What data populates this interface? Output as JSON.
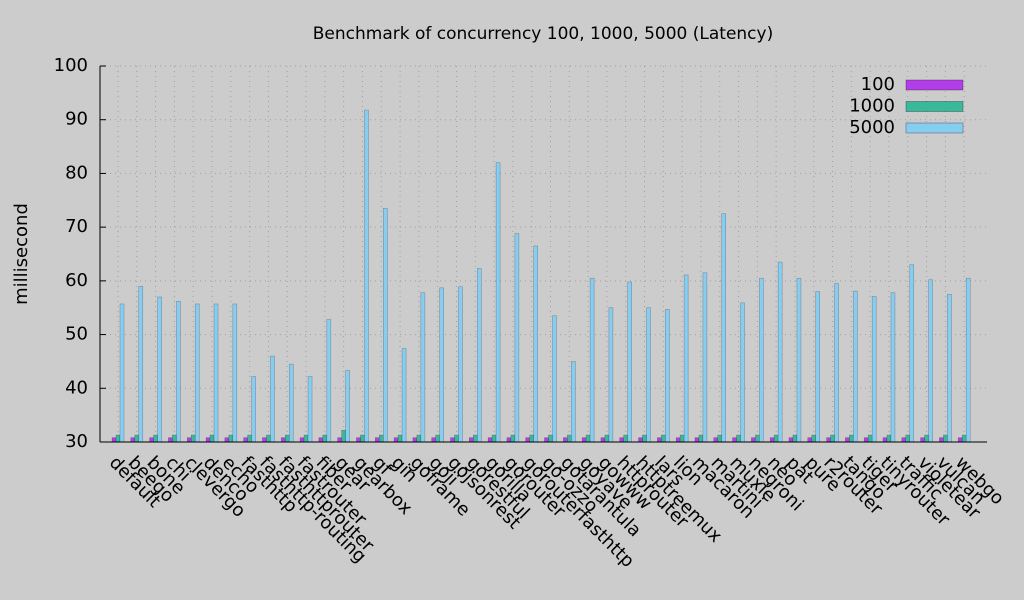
{
  "chart_data": {
    "type": "bar",
    "title": "Benchmark of concurrency 100, 1000, 5000 (Latency)",
    "y_label": "millisecond",
    "categories": [
      "default",
      "beego",
      "bone",
      "chi",
      "clevergo",
      "denco",
      "echo",
      "fasthttp",
      "fasthttp-routing",
      "fasthttprouter",
      "fastrouter",
      "fiber",
      "gear",
      "gearbox",
      "gf",
      "gin",
      "goframe",
      "goji",
      "gojsonrest",
      "gorestful",
      "gorilla",
      "gorouter",
      "gorouterfasthttp",
      "go-ozzo",
      "gotarantula",
      "goyave",
      "gowww",
      "httprouter",
      "httptreemux",
      "lars",
      "lion",
      "macaron",
      "martini",
      "muxie",
      "negroni",
      "neo",
      "pat",
      "pure",
      "r2router",
      "tango",
      "tiger",
      "tinyrouter",
      "traffic",
      "violetear",
      "vulcan",
      "webgo"
    ],
    "series": [
      {
        "name": "100",
        "color": "#b23ee8",
        "values": [
          30.8,
          30.8,
          30.8,
          30.8,
          30.8,
          30.8,
          30.8,
          30.8,
          30.8,
          30.8,
          30.8,
          30.8,
          30.8,
          30.8,
          30.8,
          30.8,
          30.8,
          30.8,
          30.8,
          30.8,
          30.8,
          30.8,
          30.8,
          30.8,
          30.8,
          30.8,
          30.8,
          30.8,
          30.8,
          30.8,
          30.8,
          30.8,
          30.8,
          30.8,
          30.8,
          30.8,
          30.8,
          30.8,
          30.8,
          30.8,
          30.8,
          30.8,
          30.8,
          30.8,
          30.8,
          30.8
        ]
      },
      {
        "name": "1000",
        "color": "#3bb89a",
        "values": [
          31.3,
          31.3,
          31.3,
          31.3,
          31.3,
          31.3,
          31.3,
          31.3,
          31.3,
          31.3,
          31.3,
          31.3,
          32.2,
          31.3,
          31.3,
          31.3,
          31.3,
          31.3,
          31.3,
          31.3,
          31.3,
          31.3,
          31.3,
          31.3,
          31.3,
          31.3,
          31.3,
          31.3,
          31.3,
          31.3,
          31.3,
          31.3,
          31.3,
          31.3,
          31.3,
          31.3,
          31.3,
          31.3,
          31.3,
          31.3,
          31.3,
          31.3,
          31.3,
          31.3,
          31.3,
          31.3
        ]
      },
      {
        "name": "5000",
        "color": "#87cdf2",
        "values": [
          55.7,
          59,
          57,
          56.2,
          55.7,
          55.7,
          55.7,
          42.2,
          46,
          44.5,
          42.2,
          52.8,
          43.3,
          91.8,
          73.5,
          47.4,
          57.8,
          58.7,
          58.9,
          62.3,
          82,
          68.8,
          66.5,
          53.5,
          45,
          60.5,
          55,
          59.8,
          55,
          54.7,
          61.1,
          61.5,
          72.5,
          55.9,
          60.5,
          63.5,
          60.5,
          58,
          59.5,
          58.1,
          57.1,
          57.8,
          63,
          60.2,
          57.5,
          60.5
        ]
      }
    ],
    "ylim": [
      30,
      100
    ],
    "yticks": [
      30,
      40,
      50,
      60,
      70,
      80,
      90,
      100
    ],
    "grid": true,
    "legend": "top-right"
  }
}
